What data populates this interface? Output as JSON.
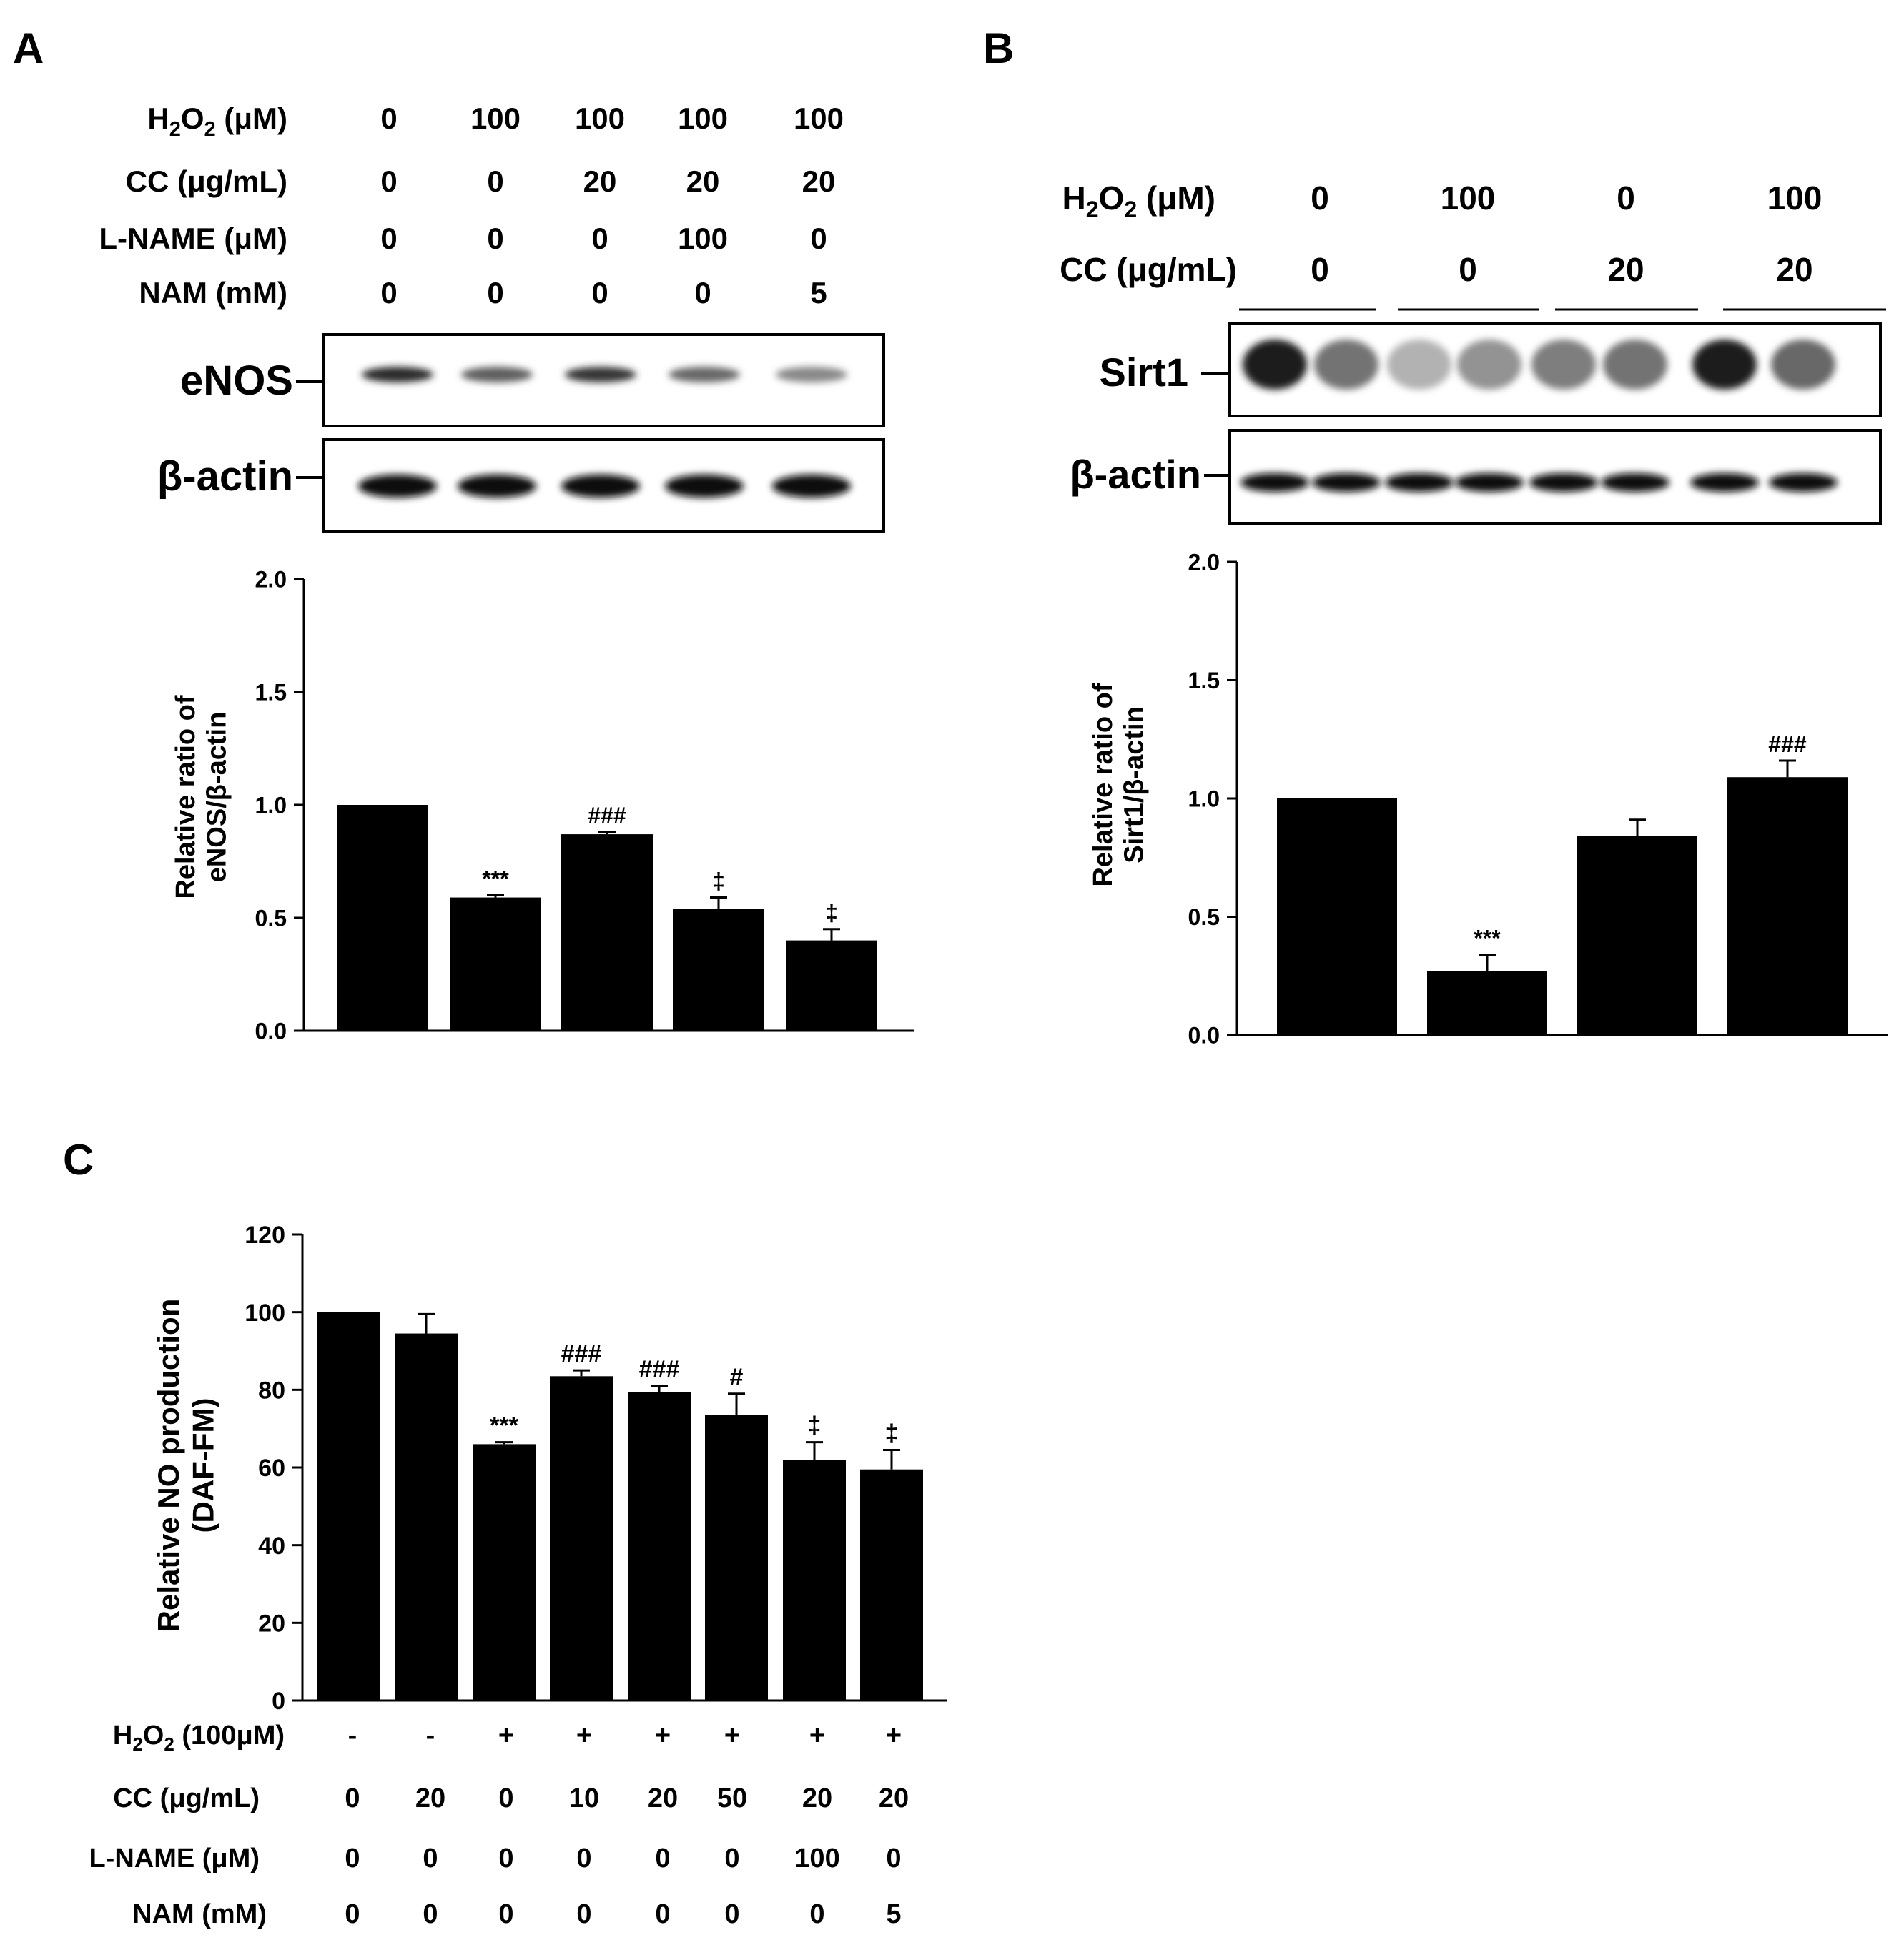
{
  "panels": {
    "A": {
      "label": "A",
      "treatments": [
        {
          "label": "H2O2 (μM)",
          "values": [
            "0",
            "100",
            "100",
            "100",
            "100"
          ]
        },
        {
          "label": "CC (μg/mL)",
          "values": [
            "0",
            "0",
            "20",
            "20",
            "20"
          ]
        },
        {
          "label": "L-NAME (μM)",
          "values": [
            "0",
            "0",
            "0",
            "100",
            "0"
          ]
        },
        {
          "label": "NAM (mM)",
          "values": [
            "0",
            "0",
            "0",
            "0",
            "5"
          ]
        }
      ],
      "blots": [
        {
          "label": "eNOS",
          "band_intensity": [
            0.85,
            0.6,
            0.8,
            0.55,
            0.4
          ]
        },
        {
          "label": "β-actin",
          "band_intensity": [
            1,
            1,
            1,
            1,
            1
          ]
        }
      ]
    },
    "B": {
      "label": "B",
      "treatments": [
        {
          "label": "H2O2 (μM)",
          "values": [
            "0",
            "100",
            "0",
            "100"
          ]
        },
        {
          "label": "CC (μg/mL)",
          "values": [
            "0",
            "0",
            "20",
            "20"
          ]
        }
      ],
      "blots": [
        {
          "label": "Sirt1",
          "band_intensity": [
            0.9,
            0.5,
            0.2,
            0.35,
            0.45,
            0.5,
            0.9,
            0.55
          ]
        },
        {
          "label": "β-actin",
          "band_intensity": [
            1,
            1,
            1,
            1,
            1,
            1,
            1,
            1
          ]
        }
      ]
    },
    "C": {
      "label": "C",
      "treatments": [
        {
          "label": "H2O2 (100μM)",
          "values": [
            "-",
            "-",
            "+",
            "+",
            "+",
            "+",
            "+",
            "+"
          ]
        },
        {
          "label": "CC (μg/mL)",
          "values": [
            "0",
            "20",
            "0",
            "10",
            "20",
            "50",
            "20",
            "20"
          ]
        },
        {
          "label": "L-NAME (μM)",
          "values": [
            "0",
            "0",
            "0",
            "0",
            "0",
            "0",
            "100",
            "0"
          ]
        },
        {
          "label": "NAM (mM)",
          "values": [
            "0",
            "0",
            "0",
            "0",
            "0",
            "0",
            "0",
            "5"
          ]
        }
      ]
    }
  },
  "chart_data": [
    {
      "panel": "A",
      "type": "bar",
      "ylabel": [
        "Relative ratio of",
        "eNOS/β-actin"
      ],
      "ylim": [
        0,
        2.0
      ],
      "yticks": [
        "0.0",
        "0.5",
        "1.0",
        "1.5",
        "2.0"
      ],
      "values": [
        1.0,
        0.59,
        0.87,
        0.54,
        0.4
      ],
      "errors": [
        0,
        0.01,
        0.01,
        0.05,
        0.05
      ],
      "annotations": [
        "",
        "***",
        "###",
        "‡",
        "‡"
      ],
      "color": "#000000"
    },
    {
      "panel": "B",
      "type": "bar",
      "ylabel": [
        "Relative ratio of",
        "Sirt1/β-actin"
      ],
      "ylim": [
        0,
        2.0
      ],
      "yticks": [
        "0.0",
        "0.5",
        "1.0",
        "1.5",
        "2.0"
      ],
      "values": [
        1.0,
        0.27,
        0.84,
        1.09
      ],
      "errors": [
        0,
        0.07,
        0.07,
        0.07
      ],
      "annotations": [
        "",
        "***",
        "",
        "###"
      ],
      "color": "#000000"
    },
    {
      "panel": "C",
      "type": "bar",
      "ylabel": [
        "Relative NO production",
        "(DAF-FM)"
      ],
      "ylim": [
        0,
        120
      ],
      "yticks": [
        "0",
        "20",
        "40",
        "60",
        "80",
        "100",
        "120"
      ],
      "values": [
        100,
        94.5,
        66,
        83.5,
        79.5,
        73.5,
        62,
        59.5
      ],
      "errors": [
        0,
        5,
        0.5,
        1.5,
        1.5,
        5.5,
        4.5,
        5
      ],
      "annotations": [
        "",
        "",
        "***",
        "###",
        "###",
        "#",
        "‡",
        "‡"
      ],
      "color": "#000000"
    }
  ]
}
